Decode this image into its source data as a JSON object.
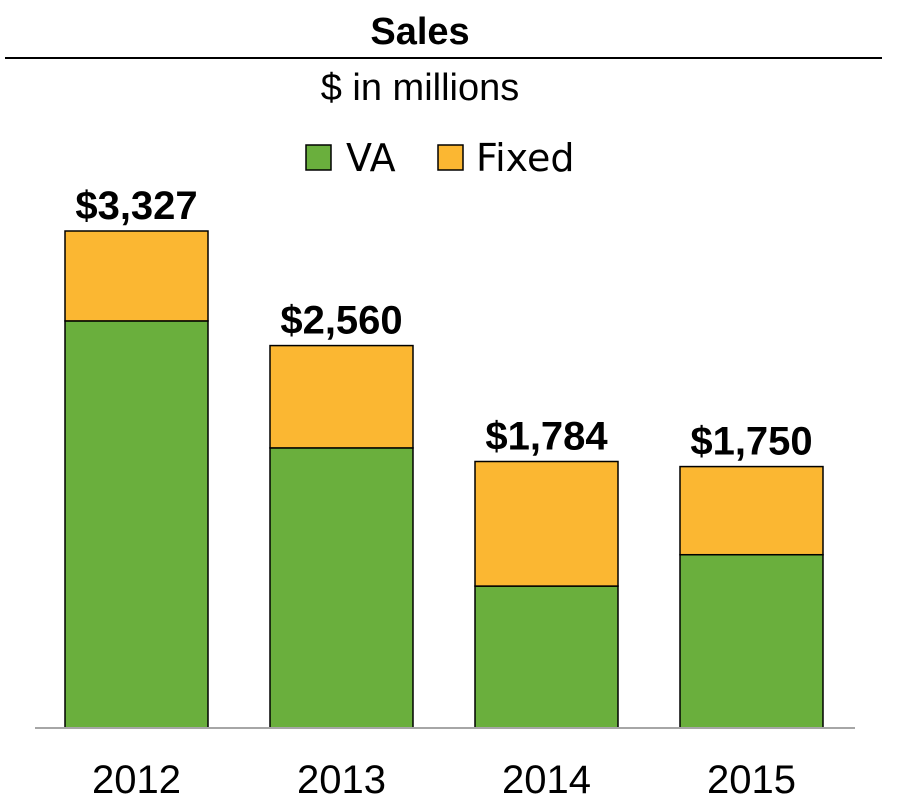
{
  "chart_data": {
    "type": "bar",
    "stacked": true,
    "title": "Sales",
    "subtitle": "$ in millions",
    "categories": [
      "2012",
      "2013",
      "2014",
      "2015"
    ],
    "series": [
      {
        "name": "VA",
        "color": "#6aaf3d",
        "values": [
          2725,
          1875,
          950,
          1160
        ]
      },
      {
        "name": "Fixed",
        "color": "#fbb732",
        "values": [
          602,
          685,
          834,
          590
        ]
      }
    ],
    "totals": [
      3327,
      2560,
      1784,
      1750
    ],
    "total_labels": [
      "$3,327",
      "$2,560",
      "$1,784",
      "$1,750"
    ],
    "ylim": [
      0,
      3327
    ],
    "grid": false,
    "legend": "top-center",
    "xlabel": "",
    "ylabel": ""
  }
}
